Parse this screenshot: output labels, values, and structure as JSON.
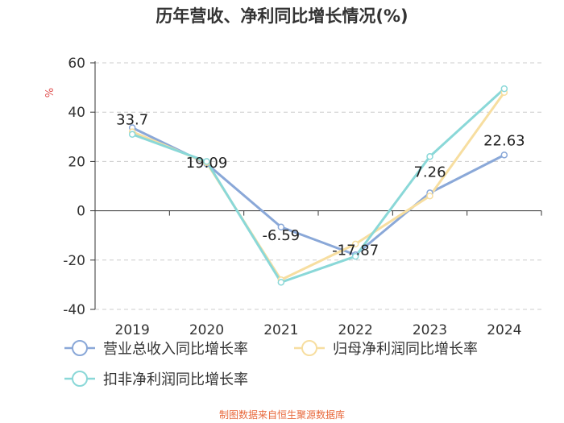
{
  "chart_data": {
    "type": "line",
    "title": "历年营收、净利同比增长情况(%)",
    "ylabel": "%",
    "xlabel": "",
    "ylim": [
      -40,
      60
    ],
    "yticks": [
      60,
      40,
      20,
      0,
      -20,
      -40
    ],
    "categories": [
      "2019",
      "2020",
      "2021",
      "2022",
      "2023",
      "2024"
    ],
    "series": [
      {
        "name": "营业总收入同比增长率",
        "color": "#8aa8d8",
        "values": [
          33.7,
          19.09,
          -6.59,
          -17.87,
          7.26,
          22.63
        ],
        "labels": [
          "33.7",
          "19.09",
          "-6.59",
          "-17.87",
          "7.26",
          "22.63"
        ]
      },
      {
        "name": "归母净利润同比增长率",
        "color": "#f7dea0",
        "values": [
          32.0,
          19.5,
          -28.0,
          -13.5,
          6.0,
          48.0
        ]
      },
      {
        "name": "扣非净利润同比增长率",
        "color": "#8ad8d8",
        "values": [
          31.0,
          20.0,
          -29.0,
          -18.5,
          22.0,
          49.5
        ]
      }
    ],
    "grid": true,
    "legend_position": "bottom"
  },
  "source": "制图数据来自恒生聚源数据库",
  "colors": {
    "axis": "#333333",
    "grid": "#cccccc",
    "ylabel": "#e05050"
  }
}
